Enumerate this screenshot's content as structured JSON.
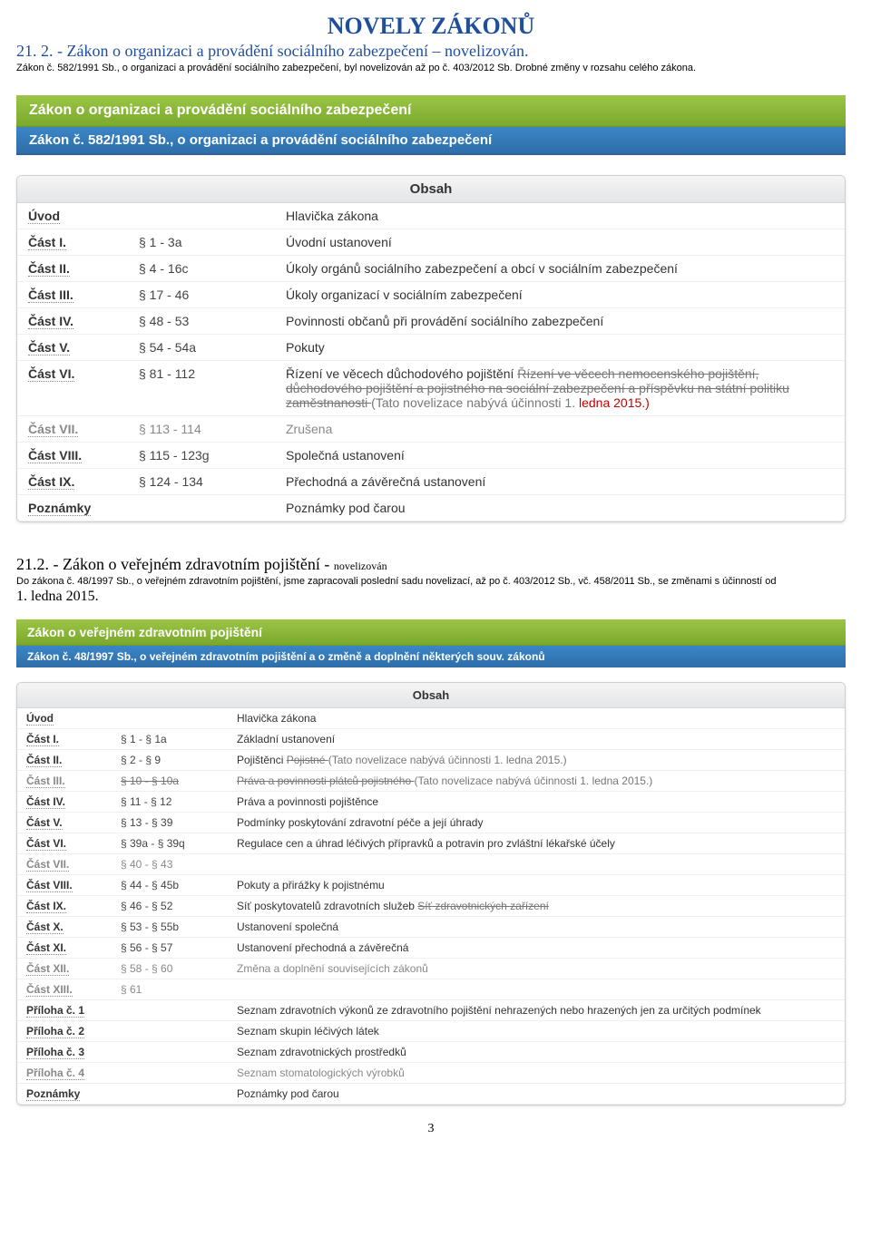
{
  "page": {
    "main_title": "NOVELY ZÁKONŮ",
    "subtitle": "21. 2. - Zákon o organizaci a provádění sociálního zabezpečení – novelizován.",
    "meta": "Zákon č. 582/1991 Sb., o organizaci a provádění sociálního zabezpečení, byl novelizován až po č. 403/2012 Sb. Drobné změny v rozsahu celého zákona.",
    "footer": "3"
  },
  "colors": {
    "title": "#1f4e9c",
    "green_top": "#9cc546",
    "green_bottom": "#7aa92c",
    "blue_top": "#3a86c8",
    "blue_bottom": "#2f6ea8",
    "red": "#c00000",
    "grey": "#888888"
  },
  "law1": {
    "green_title": "Zákon o organizaci a provádění sociálního zabezpečení",
    "blue_title": "Zákon č. 582/1991 Sb., o organizaci a provádění sociálního zabezpečení",
    "panel_head": "Obsah",
    "rows": [
      {
        "part": "Úvod",
        "sections": "",
        "desc": "Hlavička zákona"
      },
      {
        "part": "Část I.",
        "sections": "§ 1 - 3a",
        "desc": "Úvodní ustanovení"
      },
      {
        "part": "Část II.",
        "sections": "§ 4 - 16c",
        "desc": "Úkoly orgánů sociálního zabezpečení a obcí v sociálním zabezpečení"
      },
      {
        "part": "Část III.",
        "sections": "§ 17 - 46",
        "desc": "Úkoly organizací v sociálním zabezpečení"
      },
      {
        "part": "Část IV.",
        "sections": "§ 48 - 53",
        "desc": "Povinnosti občanů při provádění sociálního zabezpečení"
      },
      {
        "part": "Část V.",
        "sections": "§ 54 - 54a",
        "desc": "Pokuty"
      },
      {
        "part": "Část VI.",
        "sections": "§ 81 - 112",
        "desc": "Řízení ve věcech důchodového pojištění",
        "struck": "Řízení ve věcech nemocenského pojištění, důchodového pojištění a pojistného na sociální zabezpečení a příspěvku na státní politiku zaměstnanosti",
        "note": "(Tato novelizace nabývá účinnosti 1.",
        "note_red": "ledna 2015.)"
      },
      {
        "part": "Část VII.",
        "sections": "§ 113 - 114",
        "desc": "Zrušena",
        "zrusena": true
      },
      {
        "part": "Část VIII.",
        "sections": "§ 115 - 123g",
        "desc": "Společná ustanovení"
      },
      {
        "part": "Část IX.",
        "sections": "§ 124 - 134",
        "desc": "Přechodná a závěrečná ustanovení"
      },
      {
        "part": "Poznámky",
        "sections": "",
        "desc": "Poznámky pod čarou"
      }
    ]
  },
  "mid": {
    "line1_a": "21.2. - Zákon o veřejném zdravotním pojištění - ",
    "line1_b": "novelizován",
    "line2": "Do zákona č. 48/1997 Sb., o veřejném zdravotním pojištění, jsme zapracovali poslední sadu novelizací, až po č. 403/2012 Sb., vč. 458/2011 Sb., se změnami s účinností od",
    "line3": "1. ledna 2015."
  },
  "law2": {
    "green_title": "Zákon o veřejném zdravotním pojištění",
    "blue_title": "Zákon č. 48/1997 Sb., o veřejném zdravotním pojištění a o změně a doplnění některých souv. zákonů",
    "panel_head": "Obsah",
    "rows": [
      {
        "part": "Úvod",
        "sections": "",
        "desc": "Hlavička zákona"
      },
      {
        "part": "Část I.",
        "sections": "§ 1 - § 1a",
        "desc": "Základní ustanovení"
      },
      {
        "part": "Část II.",
        "sections": "§ 2 - § 9",
        "desc": "Pojištěnci",
        "struck": "Pojistné",
        "note": "(Tato novelizace nabývá účinnosti 1. ledna 2015.)"
      },
      {
        "part": "Část III.",
        "sections_struck": "§ 10 - § 10a",
        "desc_struck": "Práva a povinnosti plátců pojistného",
        "note": "(Tato novelizace nabývá účinnosti 1. ledna 2015.)",
        "zrusena": true
      },
      {
        "part": "Část IV.",
        "sections": "§ 11 - § 12",
        "desc": "Práva a povinnosti pojištěnce"
      },
      {
        "part": "Část V.",
        "sections": "§ 13 - § 39",
        "desc": "Podmínky poskytování zdravotní péče a její úhrady"
      },
      {
        "part": "Část VI.",
        "sections": "§ 39a - § 39q",
        "desc": "Regulace cen a úhrad léčivých přípravků a potravin pro zvláštní lékařské účely"
      },
      {
        "part": "Část VII.",
        "sections": "§ 40 - § 43",
        "desc": "",
        "zrusena": true
      },
      {
        "part": "Část VIII.",
        "sections": "§ 44 - § 45b",
        "desc": "Pokuty a přirážky k pojistnému"
      },
      {
        "part": "Část IX.",
        "sections": "§ 46 - § 52",
        "desc": "Síť poskytovatelů zdravotních služeb",
        "struck": "Síť zdravotnických zařízení"
      },
      {
        "part": "Část X.",
        "sections": "§ 53 - § 55b",
        "desc": "Ustanovení společná"
      },
      {
        "part": "Část XI.",
        "sections": "§ 56 - § 57",
        "desc": "Ustanovení přechodná a závěrečná"
      },
      {
        "part": "Část XII.",
        "sections": "§ 58 - § 60",
        "desc": "Změna a doplnění souvisejících zákonů",
        "zrusena": true
      },
      {
        "part": "Část XIII.",
        "sections": "§ 61",
        "desc": "",
        "zrusena": true
      },
      {
        "part": "Příloha č. 1",
        "sections": "",
        "desc": "Seznam zdravotních výkonů ze zdravotního pojištění nehrazených nebo hrazených jen za určitých podmínek"
      },
      {
        "part": "Příloha č. 2",
        "sections": "",
        "desc": "Seznam skupin léčivých látek"
      },
      {
        "part": "Příloha č. 3",
        "sections": "",
        "desc": "Seznam zdravotnických prostředků"
      },
      {
        "part": "Příloha č. 4",
        "sections": "",
        "desc": "Seznam stomatologických výrobků",
        "zrusena": true
      },
      {
        "part": "Poznámky",
        "sections": "",
        "desc": "Poznámky pod čarou"
      }
    ]
  }
}
